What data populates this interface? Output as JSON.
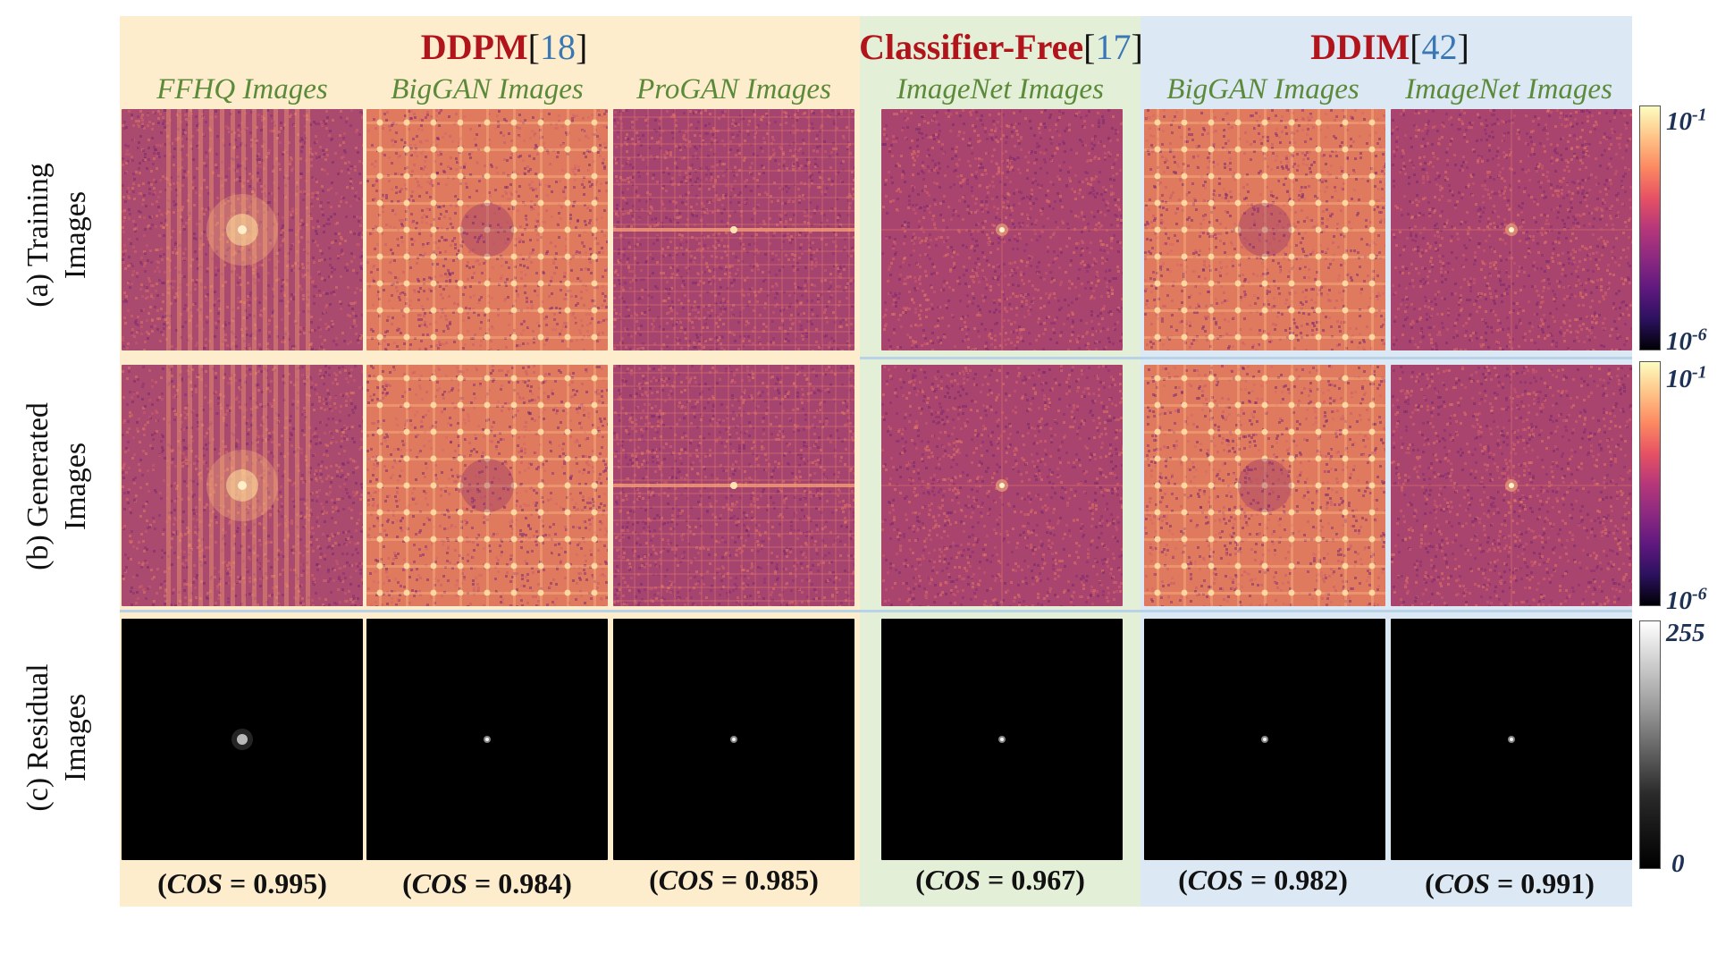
{
  "groups": [
    {
      "name": "DDPM",
      "bracket_open": "[",
      "ref": "18",
      "bracket_close": "]"
    },
    {
      "name": "Classifier-Free",
      "bracket_open": "[",
      "ref": "17",
      "bracket_close": "]"
    },
    {
      "name": "DDIM",
      "bracket_open": "[",
      "ref": "42",
      "bracket_close": "]"
    }
  ],
  "columns": [
    {
      "title": "FFHQ Images",
      "cos_value": "0.995"
    },
    {
      "title": "BigGAN Images",
      "cos_value": "0.984"
    },
    {
      "title": "ProGAN Images",
      "cos_value": "0.985"
    },
    {
      "title": "ImageNet Images",
      "cos_value": "0.967"
    },
    {
      "title": "BigGAN Images",
      "cos_value": "0.982"
    },
    {
      "title": "ImageNet Images",
      "cos_value": "0.991"
    }
  ],
  "rows": [
    {
      "line1": "(a) Training",
      "line2": "Images"
    },
    {
      "line1": "(b) Generated",
      "line2": "Images"
    },
    {
      "line1": "(c) Residual",
      "line2": "Images"
    }
  ],
  "cos": {
    "open": "(",
    "label": "COS",
    "eq": " = ",
    "close": ")"
  },
  "colorbars": [
    {
      "top": "10-1",
      "bottom": "10-6",
      "colormap": "magma"
    },
    {
      "top": "10-1",
      "bottom": "10-6",
      "colormap": "magma"
    },
    {
      "top": "255",
      "bottom": "0",
      "colormap": "gray"
    }
  ],
  "colors": {
    "ddpm_bg": "#fdedcc",
    "cf_bg": "#e3efd7",
    "ddim_bg": "#dce8f4",
    "method_name": "#b2141b",
    "ref": "#3a78b5",
    "column_title": "#5b8a3a"
  }
}
